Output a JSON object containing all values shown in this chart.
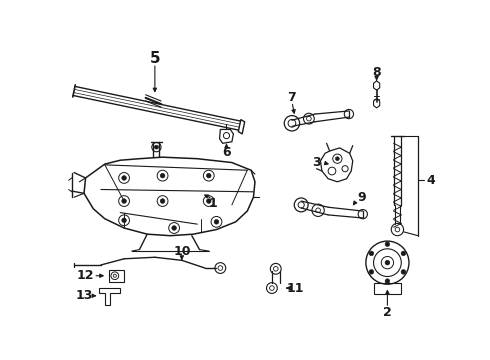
{
  "bg_color": "#ffffff",
  "line_color": "#1a1a1a",
  "figsize": [
    4.9,
    3.6
  ],
  "dpi": 100,
  "lw_main": 1.0,
  "lw_thin": 0.6,
  "lw_thick": 1.4
}
